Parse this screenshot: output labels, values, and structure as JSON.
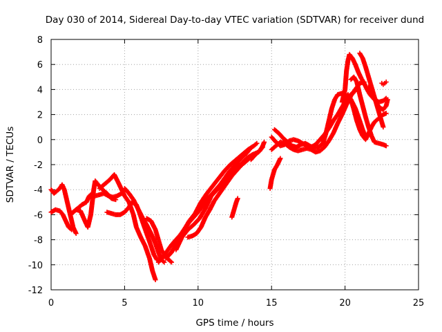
{
  "chart_data": {
    "type": "scatter",
    "title": "Day 030 of 2014, Sidereal Day-to-day VTEC variation (SDTVAR) for receiver dund",
    "xlabel": "GPS time / hours",
    "ylabel": "SDTVAR / TECUs",
    "xlim": [
      0,
      25
    ],
    "ylim": [
      -12,
      8
    ],
    "xticks": [
      "0",
      "5",
      "10",
      "15",
      "20",
      "25"
    ],
    "yticks": [
      "8",
      "6",
      "4",
      "2",
      "0",
      "-2",
      "-4",
      "-6",
      "-8",
      "-10",
      "-12"
    ],
    "grid": true,
    "marker": "plus",
    "color": "#ff0000",
    "series": [
      {
        "points": [
          [
            0.0,
            -4.0
          ],
          [
            0.2,
            -4.3
          ],
          [
            0.4,
            -4.1
          ],
          [
            0.6,
            -3.9
          ],
          [
            0.75,
            -3.6
          ],
          [
            0.9,
            -4.0
          ],
          [
            1.1,
            -5.0
          ],
          [
            1.3,
            -6.0
          ],
          [
            1.5,
            -7.0
          ],
          [
            1.7,
            -7.5
          ]
        ]
      },
      {
        "points": [
          [
            0.0,
            -5.8
          ],
          [
            0.3,
            -5.6
          ],
          [
            0.6,
            -5.7
          ],
          [
            0.8,
            -6.0
          ],
          [
            1.0,
            -6.5
          ],
          [
            1.2,
            -7.0
          ],
          [
            1.4,
            -7.2
          ]
        ]
      },
      {
        "points": [
          [
            1.5,
            -5.8
          ],
          [
            1.8,
            -5.5
          ],
          [
            2.1,
            -5.2
          ],
          [
            2.4,
            -5.0
          ],
          [
            2.6,
            -4.5
          ],
          [
            2.8,
            -4.3
          ],
          [
            3.0,
            -4.5
          ],
          [
            3.3,
            -4.4
          ],
          [
            3.6,
            -4.3
          ],
          [
            3.9,
            -4.5
          ],
          [
            4.2,
            -4.6
          ],
          [
            4.5,
            -4.5
          ],
          [
            4.8,
            -4.3
          ]
        ]
      },
      {
        "points": [
          [
            1.4,
            -5.9
          ],
          [
            1.7,
            -5.6
          ],
          [
            2.0,
            -5.7
          ],
          [
            2.3,
            -6.5
          ],
          [
            2.5,
            -7.0
          ],
          [
            2.7,
            -6.0
          ],
          [
            2.9,
            -4.0
          ],
          [
            3.0,
            -3.3
          ],
          [
            3.2,
            -3.6
          ],
          [
            3.5,
            -4.0
          ],
          [
            3.8,
            -4.3
          ],
          [
            4.1,
            -4.7
          ],
          [
            4.4,
            -4.8
          ]
        ]
      },
      {
        "points": [
          [
            3.8,
            -5.8
          ],
          [
            4.1,
            -5.9
          ],
          [
            4.4,
            -6.0
          ],
          [
            4.7,
            -6.0
          ],
          [
            5.0,
            -5.8
          ],
          [
            5.3,
            -5.4
          ],
          [
            5.5,
            -5.0
          ],
          [
            5.8,
            -5.2
          ],
          [
            6.0,
            -5.8
          ],
          [
            6.2,
            -6.5
          ],
          [
            6.5,
            -7.5
          ],
          [
            6.8,
            -8.5
          ],
          [
            7.0,
            -9.2
          ],
          [
            7.2,
            -9.6
          ]
        ]
      },
      {
        "points": [
          [
            3.3,
            -3.9
          ],
          [
            3.7,
            -3.5
          ],
          [
            4.0,
            -3.2
          ],
          [
            4.3,
            -2.8
          ],
          [
            4.6,
            -3.5
          ],
          [
            4.8,
            -4.0
          ],
          [
            5.0,
            -4.5
          ],
          [
            5.3,
            -5.0
          ],
          [
            5.6,
            -6.0
          ],
          [
            5.8,
            -7.0
          ],
          [
            6.1,
            -7.8
          ],
          [
            6.4,
            -8.5
          ],
          [
            6.7,
            -9.5
          ],
          [
            6.9,
            -10.5
          ],
          [
            7.1,
            -11.2
          ]
        ]
      },
      {
        "points": [
          [
            5.0,
            -3.9
          ],
          [
            5.3,
            -4.3
          ],
          [
            5.6,
            -4.8
          ],
          [
            5.9,
            -5.5
          ],
          [
            6.2,
            -6.2
          ],
          [
            6.5,
            -6.8
          ],
          [
            6.8,
            -7.5
          ],
          [
            7.1,
            -8.3
          ],
          [
            7.3,
            -9.0
          ],
          [
            7.5,
            -9.6
          ],
          [
            7.7,
            -9.8
          ]
        ]
      },
      {
        "points": [
          [
            6.5,
            -6.3
          ],
          [
            6.8,
            -6.5
          ],
          [
            7.1,
            -7.2
          ],
          [
            7.3,
            -8.0
          ],
          [
            7.5,
            -8.8
          ],
          [
            7.7,
            -9.2
          ],
          [
            8.0,
            -9.6
          ],
          [
            8.2,
            -9.8
          ]
        ]
      },
      {
        "points": [
          [
            7.3,
            -9.8
          ],
          [
            7.6,
            -9.4
          ],
          [
            7.9,
            -8.9
          ],
          [
            8.2,
            -8.4
          ],
          [
            8.5,
            -8.0
          ],
          [
            8.8,
            -7.6
          ],
          [
            9.1,
            -7.1
          ],
          [
            9.4,
            -6.6
          ],
          [
            9.7,
            -6.2
          ],
          [
            10.0,
            -5.8
          ],
          [
            10.3,
            -5.3
          ],
          [
            10.6,
            -4.8
          ],
          [
            10.9,
            -4.4
          ],
          [
            11.2,
            -4.0
          ],
          [
            11.5,
            -3.6
          ],
          [
            11.8,
            -3.1
          ],
          [
            12.1,
            -2.6
          ],
          [
            12.4,
            -2.2
          ],
          [
            12.7,
            -1.8
          ],
          [
            13.0,
            -1.4
          ],
          [
            13.3,
            -1.1
          ],
          [
            13.5,
            -0.8
          ]
        ]
      },
      {
        "points": [
          [
            7.8,
            -9.5
          ],
          [
            8.2,
            -9.0
          ],
          [
            8.6,
            -8.2
          ],
          [
            9.0,
            -7.3
          ],
          [
            9.4,
            -6.5
          ],
          [
            9.8,
            -5.9
          ],
          [
            10.2,
            -5.0
          ],
          [
            10.6,
            -4.3
          ],
          [
            11.0,
            -3.7
          ],
          [
            11.4,
            -3.1
          ],
          [
            11.8,
            -2.5
          ],
          [
            12.2,
            -2.0
          ],
          [
            12.6,
            -1.6
          ],
          [
            13.0,
            -1.2
          ],
          [
            13.4,
            -0.8
          ],
          [
            13.8,
            -0.5
          ],
          [
            14.0,
            -0.3
          ]
        ]
      },
      {
        "points": [
          [
            8.5,
            -8.8
          ],
          [
            8.9,
            -7.8
          ],
          [
            9.3,
            -7.2
          ],
          [
            9.7,
            -6.8
          ],
          [
            10.1,
            -6.3
          ],
          [
            10.5,
            -5.5
          ],
          [
            10.9,
            -4.5
          ],
          [
            11.3,
            -4.0
          ],
          [
            11.7,
            -3.5
          ],
          [
            12.1,
            -2.8
          ],
          [
            12.5,
            -2.3
          ],
          [
            12.9,
            -2.0
          ],
          [
            13.3,
            -1.5
          ],
          [
            13.7,
            -1.2
          ],
          [
            14.1,
            -1.0
          ],
          [
            14.4,
            -0.6
          ]
        ]
      },
      {
        "points": [
          [
            9.3,
            -7.8
          ],
          [
            9.6,
            -7.7
          ],
          [
            9.9,
            -7.5
          ],
          [
            10.2,
            -7.0
          ],
          [
            10.5,
            -6.2
          ],
          [
            10.8,
            -5.6
          ],
          [
            11.1,
            -4.9
          ],
          [
            11.4,
            -4.4
          ],
          [
            11.7,
            -3.9
          ],
          [
            12.0,
            -3.4
          ],
          [
            12.3,
            -2.9
          ],
          [
            12.6,
            -2.5
          ],
          [
            12.9,
            -2.1
          ],
          [
            13.2,
            -1.8
          ],
          [
            13.5,
            -1.5
          ],
          [
            13.8,
            -1.3
          ]
        ]
      },
      {
        "points": [
          [
            12.3,
            -6.2
          ],
          [
            12.4,
            -5.8
          ],
          [
            12.5,
            -5.4
          ],
          [
            12.6,
            -5.0
          ],
          [
            12.7,
            -4.7
          ]
        ]
      },
      {
        "points": [
          [
            13.6,
            -1.6
          ],
          [
            13.9,
            -1.2
          ],
          [
            14.2,
            -0.9
          ],
          [
            14.4,
            -0.5
          ],
          [
            14.5,
            -0.2
          ]
        ]
      },
      {
        "points": [
          [
            14.9,
            -3.9
          ],
          [
            15.0,
            -3.2
          ],
          [
            15.2,
            -2.4
          ],
          [
            15.4,
            -2.0
          ],
          [
            15.6,
            -1.5
          ]
        ]
      },
      {
        "points": [
          [
            15.2,
            0.8
          ],
          [
            15.5,
            0.5
          ],
          [
            15.8,
            0.1
          ],
          [
            16.1,
            -0.2
          ],
          [
            16.4,
            -0.5
          ],
          [
            16.7,
            -0.6
          ],
          [
            17.0,
            -0.4
          ],
          [
            17.3,
            -0.3
          ],
          [
            17.6,
            -0.5
          ],
          [
            17.9,
            -0.7
          ],
          [
            18.2,
            -0.6
          ],
          [
            18.5,
            -0.3
          ],
          [
            18.7,
            0.5
          ],
          [
            18.9,
            1.5
          ],
          [
            19.1,
            2.5
          ],
          [
            19.3,
            3.2
          ],
          [
            19.5,
            3.6
          ],
          [
            19.8,
            3.7
          ],
          [
            20.1,
            3.5
          ],
          [
            20.4,
            3.2
          ],
          [
            20.7,
            2.5
          ],
          [
            21.0,
            1.5
          ],
          [
            21.2,
            0.8
          ],
          [
            21.4,
            0.2
          ]
        ]
      },
      {
        "points": [
          [
            15.0,
            -0.8
          ],
          [
            15.3,
            -0.5
          ],
          [
            15.6,
            -0.2
          ],
          [
            15.9,
            -0.3
          ],
          [
            16.2,
            -0.6
          ],
          [
            16.5,
            -0.8
          ],
          [
            16.8,
            -0.9
          ],
          [
            17.1,
            -0.8
          ],
          [
            17.4,
            -0.7
          ],
          [
            17.7,
            -0.8
          ],
          [
            18.0,
            -1.0
          ],
          [
            18.3,
            -0.9
          ],
          [
            18.6,
            -0.6
          ],
          [
            18.9,
            -0.1
          ],
          [
            19.2,
            0.5
          ],
          [
            19.5,
            1.3
          ],
          [
            19.8,
            2.0
          ],
          [
            20.1,
            2.8
          ],
          [
            20.4,
            3.5
          ],
          [
            20.7,
            4.0
          ],
          [
            21.0,
            4.5
          ],
          [
            21.3,
            4.6
          ]
        ]
      },
      {
        "points": [
          [
            15.0,
            0.2
          ],
          [
            15.3,
            -0.2
          ],
          [
            15.6,
            -0.5
          ],
          [
            15.9,
            -0.4
          ],
          [
            16.2,
            -0.1
          ],
          [
            16.5,
            0.0
          ],
          [
            16.8,
            -0.1
          ],
          [
            17.1,
            -0.3
          ],
          [
            17.4,
            -0.5
          ],
          [
            17.7,
            -0.6
          ],
          [
            18.0,
            -0.4
          ],
          [
            18.3,
            0.0
          ],
          [
            18.6,
            0.4
          ],
          [
            18.9,
            0.9
          ],
          [
            19.2,
            1.5
          ],
          [
            19.5,
            2.0
          ],
          [
            19.8,
            2.6
          ],
          [
            20.1,
            3.2
          ],
          [
            20.4,
            3.6
          ],
          [
            20.7,
            3.9
          ]
        ]
      },
      {
        "points": [
          [
            19.8,
            3.0
          ],
          [
            20.0,
            4.0
          ],
          [
            20.1,
            5.5
          ],
          [
            20.2,
            6.3
          ],
          [
            20.3,
            6.8
          ],
          [
            20.5,
            6.5
          ],
          [
            20.7,
            6.0
          ],
          [
            20.9,
            5.4
          ],
          [
            21.1,
            4.9
          ],
          [
            21.3,
            4.5
          ],
          [
            21.5,
            4.0
          ],
          [
            21.7,
            3.6
          ],
          [
            22.0,
            3.2
          ],
          [
            22.3,
            3.0
          ],
          [
            22.6,
            3.1
          ],
          [
            22.8,
            3.3
          ]
        ]
      },
      {
        "points": [
          [
            20.0,
            3.3
          ],
          [
            20.2,
            3.6
          ],
          [
            20.4,
            3.2
          ],
          [
            20.6,
            2.4
          ],
          [
            20.8,
            1.5
          ],
          [
            21.0,
            0.8
          ],
          [
            21.2,
            0.3
          ],
          [
            21.4,
            0.0
          ],
          [
            21.6,
            0.5
          ],
          [
            21.8,
            1.0
          ],
          [
            22.0,
            1.4
          ],
          [
            22.2,
            1.6
          ],
          [
            22.4,
            1.8
          ],
          [
            22.6,
            2.0
          ],
          [
            22.8,
            2.1
          ]
        ]
      },
      {
        "points": [
          [
            21.0,
            6.9
          ],
          [
            21.2,
            6.5
          ],
          [
            21.4,
            5.8
          ],
          [
            21.6,
            5.0
          ],
          [
            21.8,
            4.2
          ],
          [
            22.0,
            3.4
          ],
          [
            22.2,
            2.6
          ],
          [
            22.4,
            1.8
          ],
          [
            22.6,
            1.0
          ]
        ]
      },
      {
        "points": [
          [
            20.4,
            4.8
          ],
          [
            20.6,
            5.0
          ],
          [
            20.8,
            4.6
          ],
          [
            21.0,
            3.6
          ],
          [
            21.2,
            2.7
          ],
          [
            21.4,
            1.8
          ],
          [
            21.6,
            1.0
          ],
          [
            21.8,
            0.3
          ],
          [
            22.0,
            -0.2
          ],
          [
            22.3,
            -0.3
          ],
          [
            22.6,
            -0.4
          ],
          [
            22.8,
            -0.5
          ]
        ]
      },
      {
        "points": [
          [
            21.6,
            4.2
          ],
          [
            21.8,
            3.8
          ],
          [
            22.0,
            3.3
          ],
          [
            22.2,
            2.8
          ],
          [
            22.4,
            2.5
          ],
          [
            22.6,
            2.4
          ],
          [
            22.8,
            2.7
          ],
          [
            22.9,
            3.2
          ]
        ]
      },
      {
        "points": [
          [
            22.5,
            4.5
          ],
          [
            22.6,
            4.4
          ],
          [
            22.7,
            4.5
          ],
          [
            22.8,
            4.6
          ]
        ]
      }
    ]
  }
}
